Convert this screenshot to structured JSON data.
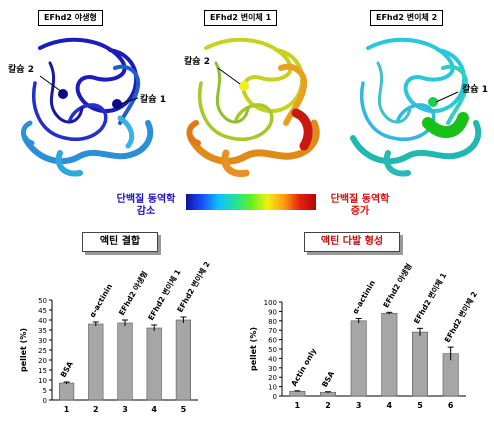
{
  "structures": [
    {
      "title": "EFhd2 야생형",
      "calcium_labels": [
        "칼슘 2",
        "칼슘 1"
      ]
    },
    {
      "title": "EFhd2 변이체 1",
      "calcium_labels": [
        "칼슘 2"
      ]
    },
    {
      "title": "EFhd2 변이체 2",
      "calcium_labels": [
        "칼슘 1"
      ]
    }
  ],
  "scale": {
    "left_line1": "단백질 동역학",
    "left_line2": "감소",
    "right_line1": "단백질 동역학",
    "right_line2": "증가",
    "left_color": "#1a12c8",
    "right_color": "#d21010"
  },
  "panels": {
    "left_title": "액틴 결합",
    "right_title": "액틴 다발 형성"
  },
  "chart_data": [
    {
      "type": "bar",
      "title": "액틴 결합",
      "ylabel": "pellet (%)",
      "ylim": [
        0,
        50
      ],
      "yticks": [
        "0",
        "5",
        "10",
        "15",
        "20",
        "25",
        "30",
        "35",
        "40",
        "45",
        "50"
      ],
      "categories": [
        "1",
        "2",
        "3",
        "4",
        "5"
      ],
      "bar_labels": [
        "BSA",
        "α-actinin",
        "EFhd2 야생형",
        "EFhd2 변이체 1",
        "EFhd2 변이체 2"
      ],
      "values": [
        8.5,
        38,
        38.5,
        36,
        40
      ],
      "errors": [
        0.5,
        1,
        1.5,
        1.5,
        1.5
      ]
    },
    {
      "type": "bar",
      "title": "액틴 다발 형성",
      "ylabel": "pellet (%)",
      "ylim": [
        0,
        100
      ],
      "yticks": [
        "0",
        "10",
        "20",
        "30",
        "40",
        "50",
        "60",
        "70",
        "80",
        "90",
        "100"
      ],
      "categories": [
        "1",
        "2",
        "3",
        "4",
        "5",
        "6"
      ],
      "bar_labels": [
        "Actin only",
        "BSA",
        "α-actinin",
        "EFhd2 야생형",
        "EFhd2 변이체 1",
        "EFhd2 변이체 2"
      ],
      "values": [
        5,
        4,
        80,
        88,
        68,
        45
      ],
      "errors": [
        0.5,
        0.5,
        2.5,
        1,
        4,
        7
      ]
    }
  ]
}
